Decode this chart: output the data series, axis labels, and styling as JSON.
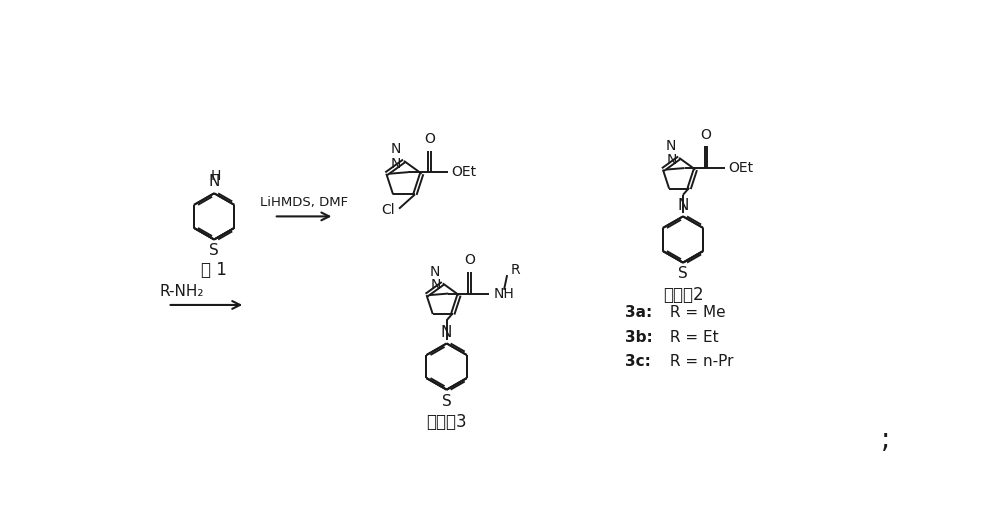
{
  "bg_color": "#ffffff",
  "line_color": "#1a1a1a",
  "figsize": [
    10.0,
    5.2
  ],
  "dpi": 100,
  "label_shi1": "式 1",
  "label_cpd2": "化合物2",
  "label_cpd3": "化合物3",
  "label_cond": "LiHMDS, DMF",
  "label_rnh2": "R-NH₂",
  "label_3a": "3a",
  "label_3b": "3b",
  "label_3c": "3c",
  "label_3a_r": "R = Me",
  "label_3b_r": "R = Et",
  "label_3c_r": "R = n-Pr",
  "semicolon": ";",
  "lw": 1.4,
  "lw_arrow": 1.5
}
